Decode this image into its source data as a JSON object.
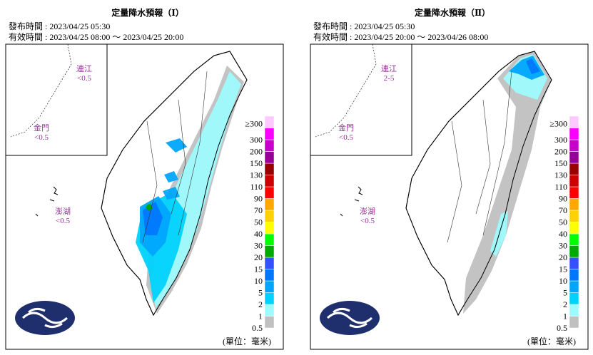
{
  "panels": [
    {
      "title": "定量降水預報（Ⅰ）",
      "issued": "發布時間 : 2023/04/25 05:30",
      "valid": "有效時間 : 2023/04/25 08:00 ～ 2023/04/25 20:00",
      "regions": [
        {
          "name": "連江",
          "value": "<0.5"
        },
        {
          "name": "金門",
          "value": "<0.5"
        },
        {
          "name": "澎湖",
          "value": "<0.5"
        }
      ],
      "unit": "(單位：毫米)"
    },
    {
      "title": "定量降水預報（Ⅱ）",
      "issued": "發布時間 : 2023/04/25 05:30",
      "valid": "有效時間 : 2023/04/25 20:00 ～ 2023/04/26 08:00",
      "regions": [
        {
          "name": "連江",
          "value": "2-5"
        },
        {
          "name": "金門",
          "value": "<0.5"
        },
        {
          "name": "澎湖",
          "value": "<0.5"
        }
      ],
      "unit": "(單位：毫米)"
    }
  ],
  "legend": {
    "labels": [
      "0.5",
      "1",
      "2",
      "5",
      "10",
      "15",
      "20",
      "30",
      "40",
      "50",
      "70",
      "90",
      "110",
      "130",
      "150",
      "200",
      "300",
      "≥300"
    ],
    "colors": [
      "#c0c0c0",
      "#9efbfd",
      "#00d2fd",
      "#00a5fe",
      "#0077fe",
      "#3152fe",
      "#00aa00",
      "#00fe00",
      "#fefe00",
      "#fed200",
      "#fea800",
      "#fe0000",
      "#cc0000",
      "#990000",
      "#960099",
      "#c900cc",
      "#fb00fe",
      "#fdc9fe"
    ]
  }
}
